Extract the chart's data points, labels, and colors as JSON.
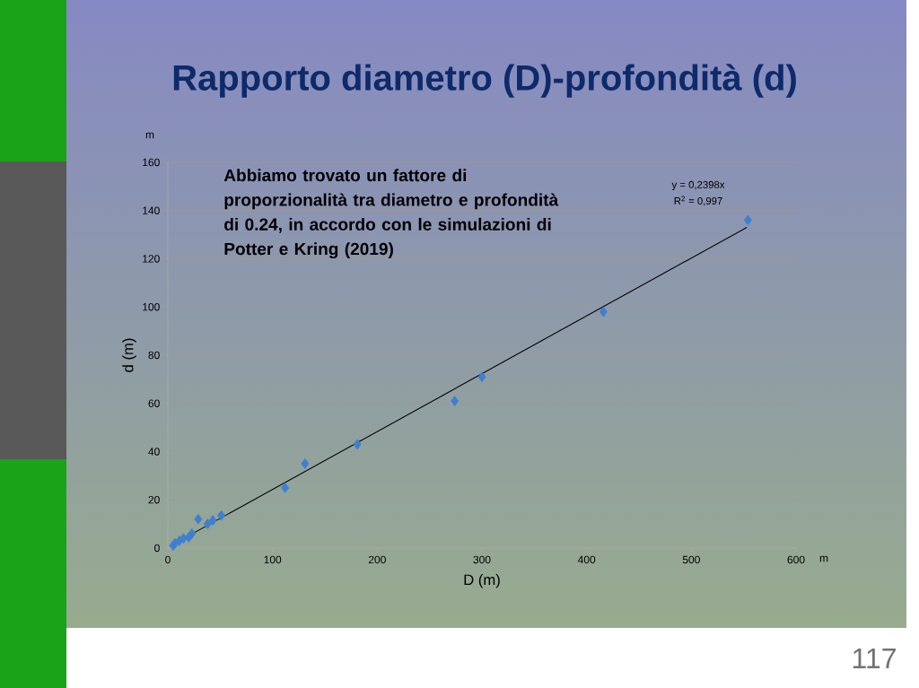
{
  "chart_data": {
    "type": "scatter",
    "title": "Rapporto diametro (D)-profondità (d)",
    "xlabel": "D (m)",
    "ylabel": "d (m)",
    "annotations": [
      "Abbiamo trovato un fattore di proporzionalità tra diametro e profondità di 0.24, in accordo con le simulazioni di Potter e Kring (2019)",
      "y = 0,2398x",
      "R$^{2}$ = 0,997",
      "m",
      "m",
      "117"
    ],
    "series": [
      {
        "color": "#3f7fd0",
        "marker": "diamond",
        "x": [
          5,
          7,
          11,
          15,
          20,
          23,
          29,
          38,
          43,
          51,
          112,
          131,
          181,
          274,
          300,
          416,
          554
        ],
        "values": [
          1,
          2,
          3,
          4,
          4.5,
          6,
          12,
          10,
          11.5,
          13.5,
          25,
          35,
          43,
          61,
          71,
          98,
          136
        ]
      },
      {
        "type": "line",
        "color": "#000000",
        "marker": "none",
        "x": [
          7,
          553
        ],
        "values": [
          2,
          133
        ]
      }
    ],
    "xlim": [
      0,
      600
    ],
    "ylim": [
      0,
      160
    ],
    "xticks": [
      0,
      100,
      200,
      300,
      400,
      500,
      600
    ],
    "yticks": [
      0,
      20,
      40,
      60,
      80,
      100,
      120,
      140,
      160
    ],
    "grid": "y"
  }
}
